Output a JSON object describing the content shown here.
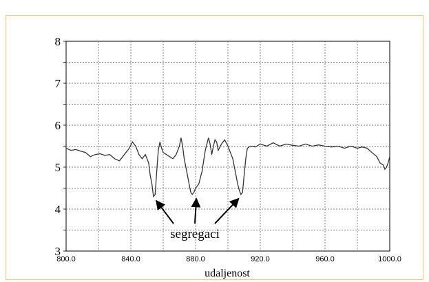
{
  "chart_data": {
    "type": "line",
    "xlabel": "udaljenost",
    "ylabel": "",
    "xlim": [
      800,
      1000
    ],
    "ylim": [
      3,
      8
    ],
    "x_ticks": [
      "800.0",
      "840.0",
      "880.0",
      "920.0",
      "960.0",
      "1000.0"
    ],
    "y_ticks": [
      "3",
      "4",
      "5",
      "6",
      "7",
      "8"
    ],
    "grid": true,
    "annotation": {
      "text": "segregaci",
      "targets": [
        [
          854.0,
          4.3
        ],
        [
          880.5,
          4.35
        ],
        [
          907.5,
          4.35
        ]
      ]
    },
    "series": [
      {
        "name": "",
        "x": [
          800,
          803,
          806,
          809,
          812,
          815,
          818,
          821,
          824,
          827,
          830,
          833,
          836,
          839,
          841,
          843,
          845,
          847,
          849,
          851,
          852,
          853,
          854,
          855,
          856,
          857,
          858,
          859,
          860,
          862,
          864,
          866,
          868,
          870,
          871,
          872,
          873,
          874,
          875,
          876,
          877,
          878,
          879,
          880,
          881,
          882,
          884,
          886,
          888,
          889,
          890,
          891,
          892,
          893,
          894,
          896,
          898,
          900,
          902,
          903,
          904,
          905,
          906,
          907,
          908,
          909,
          910,
          911,
          912,
          914,
          917,
          920,
          924,
          928,
          932,
          936,
          940,
          944,
          948,
          952,
          956,
          960,
          964,
          968,
          972,
          976,
          980,
          983,
          986,
          989,
          992,
          994,
          996,
          997,
          998,
          999,
          1000
        ],
        "y": [
          5.45,
          5.4,
          5.42,
          5.38,
          5.35,
          5.25,
          5.3,
          5.32,
          5.28,
          5.3,
          5.2,
          5.15,
          5.3,
          5.45,
          5.6,
          5.5,
          5.3,
          5.2,
          5.3,
          5.1,
          4.8,
          4.6,
          4.3,
          4.35,
          4.9,
          5.4,
          5.6,
          5.45,
          5.35,
          5.3,
          5.25,
          5.2,
          5.3,
          5.5,
          5.7,
          5.5,
          5.2,
          5.0,
          4.8,
          4.6,
          4.4,
          4.35,
          4.4,
          4.5,
          4.55,
          4.6,
          4.9,
          5.4,
          5.7,
          5.55,
          5.3,
          5.5,
          5.65,
          5.6,
          5.4,
          5.55,
          5.65,
          5.5,
          5.3,
          5.2,
          5.0,
          4.8,
          4.6,
          4.45,
          4.35,
          4.4,
          4.8,
          5.2,
          5.45,
          5.5,
          5.48,
          5.55,
          5.5,
          5.58,
          5.5,
          5.55,
          5.52,
          5.5,
          5.55,
          5.5,
          5.53,
          5.5,
          5.48,
          5.5,
          5.45,
          5.5,
          5.45,
          5.48,
          5.45,
          5.35,
          5.25,
          5.1,
          5.05,
          4.95,
          5.0,
          5.1,
          5.25
        ]
      }
    ]
  }
}
